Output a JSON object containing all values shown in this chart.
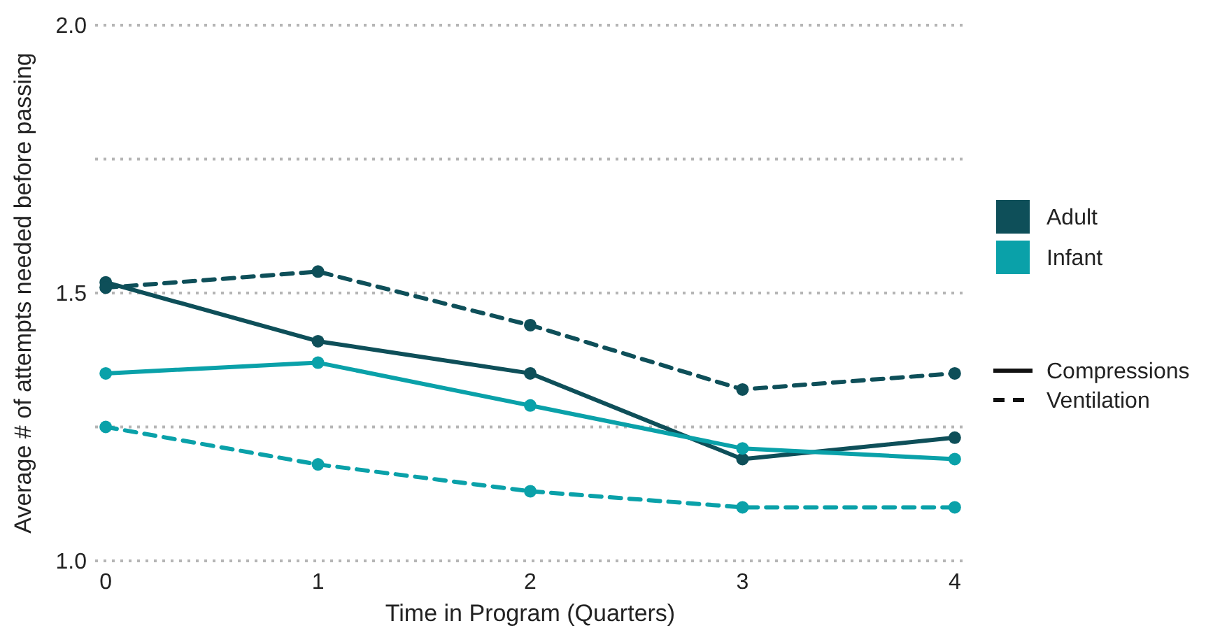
{
  "chart_data": {
    "type": "line",
    "xlabel": "Time in Program (Quarters)",
    "ylabel": "Average # of attempts needed before passing",
    "x": [
      0,
      1,
      2,
      3,
      4
    ],
    "xlim": [
      -0.05,
      4.05
    ],
    "xticks": [
      0,
      1,
      2,
      3,
      4
    ],
    "ylim": [
      1.0,
      2.0
    ],
    "yticks": [
      {
        "value": 1,
        "label": "1.0"
      },
      {
        "value": 1.25,
        "label": null
      },
      1.5,
      {
        "value": 1.75,
        "label": null
      },
      {
        "value": 2,
        "label": "2.0"
      }
    ],
    "grid": "y",
    "legend": "right",
    "marker": "circle",
    "series": [
      {
        "name": "Adult",
        "color": "#0e4f59",
        "line_style": "solid",
        "values": [
          1.52,
          1.41,
          1.35,
          1.19,
          1.23
        ]
      },
      {
        "name": "Infant",
        "color": "#0aa1a9",
        "line_style": "solid",
        "values": [
          1.35,
          1.37,
          1.29,
          1.21,
          1.19
        ]
      },
      {
        "color": "#0e4f59",
        "line_style": "dashed",
        "values": [
          1.51,
          1.54,
          1.44,
          1.32,
          1.35
        ]
      },
      {
        "color": "#0aa1a9",
        "line_style": "dashed",
        "values": [
          1.25,
          1.18,
          1.13,
          1.1,
          1.1
        ]
      }
    ],
    "annotations": [
      "Compressions",
      "Ventilation"
    ]
  }
}
